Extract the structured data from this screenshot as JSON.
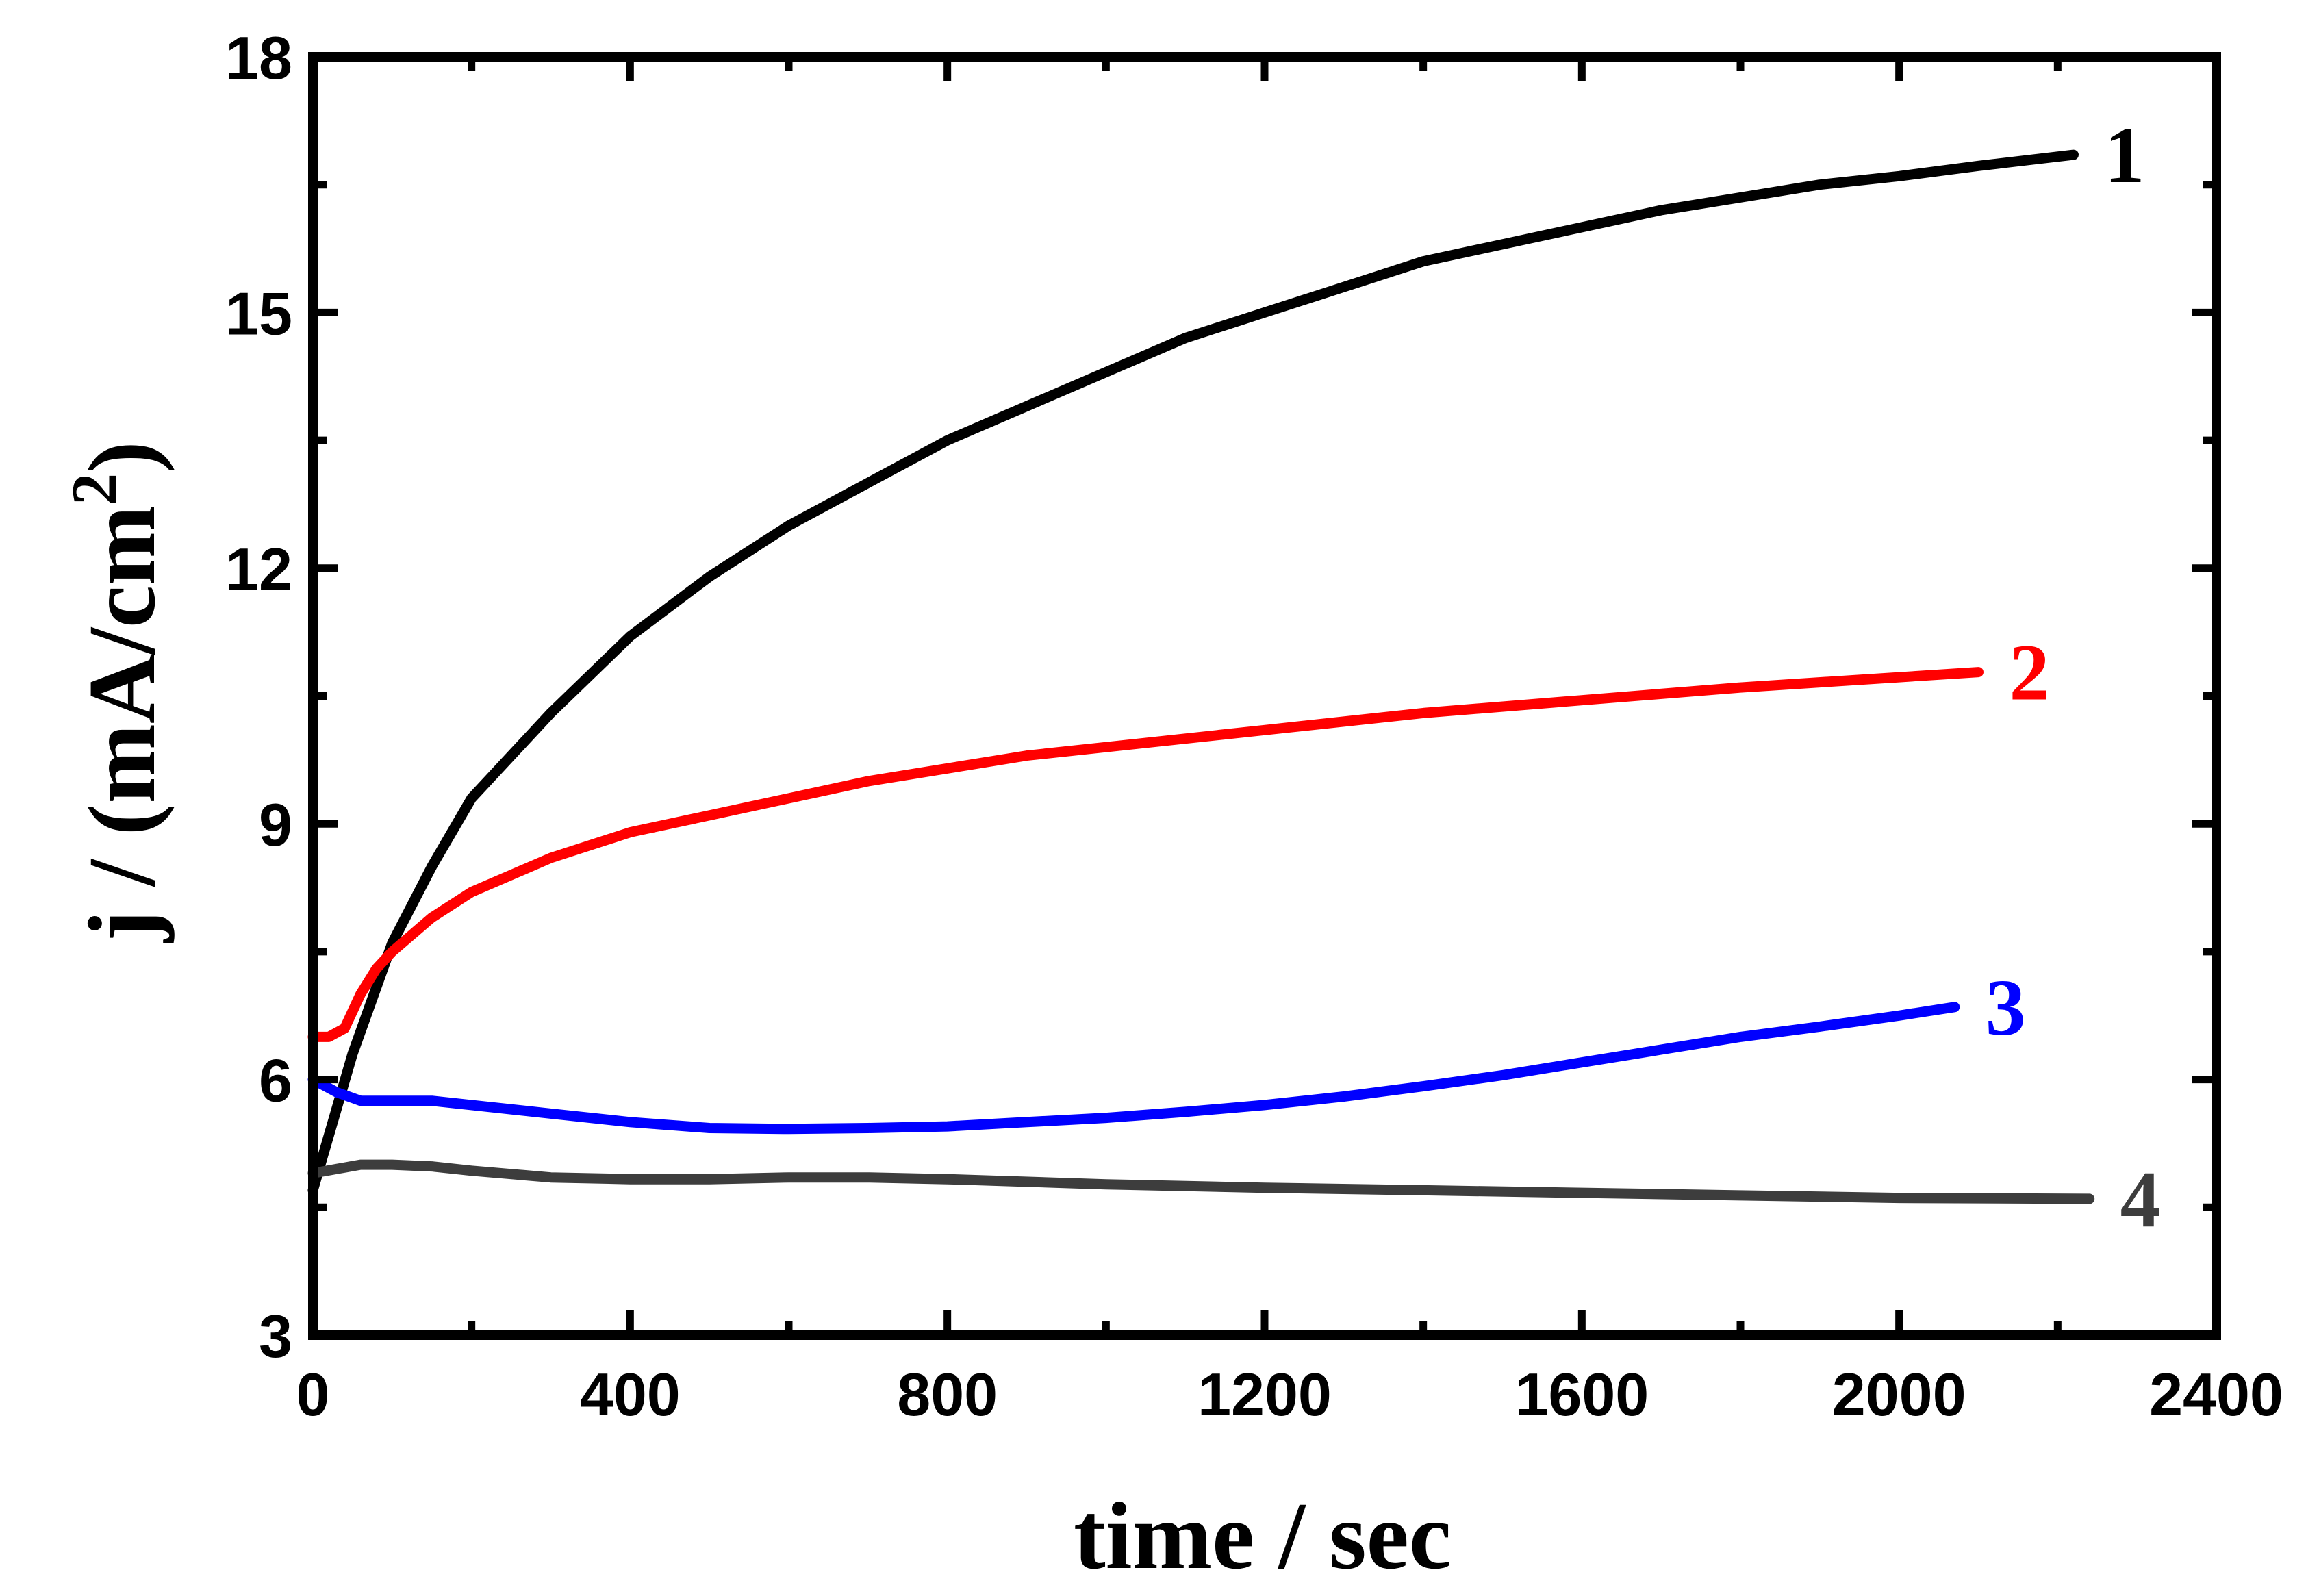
{
  "chart_data": {
    "type": "line",
    "title": "",
    "xlabel": "time / sec",
    "ylabel": {
      "prefix": "j / (mA/cm",
      "superscript": "2",
      "suffix": ")"
    },
    "xlim": [
      0,
      2400
    ],
    "ylim": [
      3,
      18
    ],
    "xticks": [
      0,
      400,
      800,
      1200,
      1600,
      2000,
      2400
    ],
    "xtick_labels": [
      "0",
      "400",
      "800",
      "1200",
      "1600",
      "2000",
      "2400"
    ],
    "yticks": [
      3,
      6,
      9,
      12,
      15,
      18
    ],
    "ytick_labels": [
      "3",
      "6",
      "9",
      "12",
      "15",
      "18"
    ],
    "x_minor_step": 200,
    "y_minor_step": 1.5,
    "grid": false,
    "legend": "inline series labels at right end of each curve",
    "series": [
      {
        "name": "1",
        "color": "#000000",
        "x": [
          0,
          50,
          100,
          150,
          200,
          300,
          400,
          500,
          600,
          700,
          800,
          900,
          1000,
          1100,
          1200,
          1300,
          1400,
          1500,
          1600,
          1700,
          1800,
          1900,
          2000,
          2100,
          2220
        ],
        "y": [
          4.7,
          6.3,
          7.6,
          8.5,
          9.3,
          10.3,
          11.2,
          11.9,
          12.5,
          13.0,
          13.5,
          13.9,
          14.3,
          14.7,
          15.0,
          15.3,
          15.6,
          15.8,
          16.0,
          16.2,
          16.35,
          16.5,
          16.6,
          16.72,
          16.85
        ]
      },
      {
        "name": "2",
        "color": "#ff0000",
        "x": [
          0,
          20,
          40,
          60,
          80,
          100,
          150,
          200,
          300,
          400,
          500,
          600,
          700,
          800,
          900,
          1000,
          1200,
          1400,
          1600,
          1800,
          2000,
          2100
        ],
        "y": [
          6.5,
          6.5,
          6.6,
          7.0,
          7.3,
          7.5,
          7.9,
          8.2,
          8.6,
          8.9,
          9.1,
          9.3,
          9.5,
          9.65,
          9.8,
          9.9,
          10.1,
          10.3,
          10.45,
          10.6,
          10.72,
          10.78
        ]
      },
      {
        "name": "3",
        "color": "#0000ff",
        "x": [
          0,
          30,
          60,
          100,
          150,
          200,
          300,
          400,
          500,
          600,
          700,
          800,
          900,
          1000,
          1100,
          1200,
          1300,
          1400,
          1500,
          1600,
          1700,
          1800,
          1900,
          2000,
          2070
        ],
        "y": [
          6.0,
          5.85,
          5.75,
          5.75,
          5.75,
          5.7,
          5.6,
          5.5,
          5.43,
          5.42,
          5.43,
          5.45,
          5.5,
          5.55,
          5.62,
          5.7,
          5.8,
          5.92,
          6.05,
          6.2,
          6.35,
          6.5,
          6.62,
          6.75,
          6.85
        ]
      },
      {
        "name": "4",
        "color": "#3d3d3d",
        "x": [
          0,
          30,
          60,
          100,
          150,
          200,
          300,
          400,
          500,
          600,
          700,
          800,
          1000,
          1200,
          1400,
          1600,
          1800,
          2000,
          2240
        ],
        "y": [
          4.9,
          4.95,
          5.0,
          5.0,
          4.98,
          4.93,
          4.85,
          4.83,
          4.83,
          4.85,
          4.85,
          4.83,
          4.77,
          4.73,
          4.7,
          4.67,
          4.64,
          4.61,
          4.6
        ]
      }
    ]
  }
}
